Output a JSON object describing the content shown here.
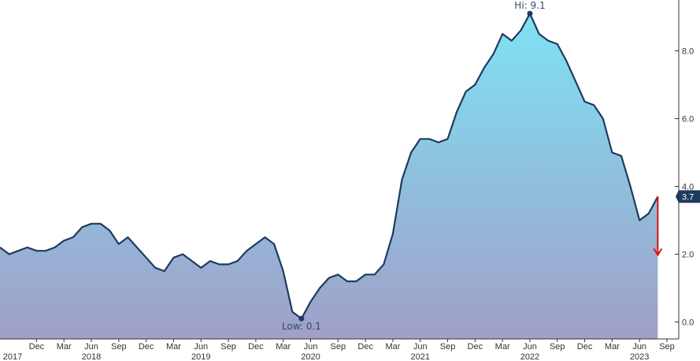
{
  "chart_data": {
    "type": "area",
    "title": "",
    "xlabel": "",
    "ylabel": "",
    "x_range": [
      "2017-08",
      "2023-09"
    ],
    "ylim": [
      -0.5,
      9.5
    ],
    "y_axis_position": "right",
    "grid": false,
    "legend": "none",
    "x_ticks": [
      {
        "date": "2017-12",
        "label": "Dec"
      },
      {
        "date": "2018-03",
        "label": "Mar"
      },
      {
        "date": "2018-06",
        "label": "Jun"
      },
      {
        "date": "2018-09",
        "label": "Sep"
      },
      {
        "date": "2018-12",
        "label": "Dec"
      },
      {
        "date": "2019-03",
        "label": "Mar"
      },
      {
        "date": "2019-06",
        "label": "Jun"
      },
      {
        "date": "2019-09",
        "label": "Sep"
      },
      {
        "date": "2019-12",
        "label": "Dec"
      },
      {
        "date": "2020-03",
        "label": "Mar"
      },
      {
        "date": "2020-06",
        "label": "Jun"
      },
      {
        "date": "2020-09",
        "label": "Sep"
      },
      {
        "date": "2020-12",
        "label": "Dec"
      },
      {
        "date": "2021-03",
        "label": "Mar"
      },
      {
        "date": "2021-06",
        "label": "Jun"
      },
      {
        "date": "2021-09",
        "label": "Sep"
      },
      {
        "date": "2021-12",
        "label": "Dec"
      },
      {
        "date": "2022-03",
        "label": "Mar"
      },
      {
        "date": "2022-06",
        "label": "Jun"
      },
      {
        "date": "2022-09",
        "label": "Sep"
      },
      {
        "date": "2022-12",
        "label": "Dec"
      },
      {
        "date": "2023-03",
        "label": "Mar"
      },
      {
        "date": "2023-06",
        "label": "Jun"
      },
      {
        "date": "2023-09",
        "label": "Sep"
      }
    ],
    "year_labels": [
      {
        "date": "2017-09",
        "label": "2017"
      },
      {
        "date": "2018-06",
        "label": "2018"
      },
      {
        "date": "2019-06",
        "label": "2019"
      },
      {
        "date": "2020-06",
        "label": "2020"
      },
      {
        "date": "2021-06",
        "label": "2021"
      },
      {
        "date": "2022-06",
        "label": "2022"
      },
      {
        "date": "2023-06",
        "label": "2023"
      }
    ],
    "y_ticks": [
      {
        "value": 0,
        "label": "0.0"
      },
      {
        "value": 2,
        "label": "2.0"
      },
      {
        "value": 4,
        "label": "4.0"
      },
      {
        "value": 6,
        "label": "6.0"
      },
      {
        "value": 8,
        "label": "8.0"
      }
    ],
    "series": [
      {
        "x": [
          "2017-08",
          "2017-09",
          "2017-10",
          "2017-11",
          "2017-12",
          "2018-01",
          "2018-02",
          "2018-03",
          "2018-04",
          "2018-05",
          "2018-06",
          "2018-07",
          "2018-08",
          "2018-09",
          "2018-10",
          "2018-11",
          "2018-12",
          "2019-01",
          "2019-02",
          "2019-03",
          "2019-04",
          "2019-05",
          "2019-06",
          "2019-07",
          "2019-08",
          "2019-09",
          "2019-10",
          "2019-11",
          "2019-12",
          "2020-01",
          "2020-02",
          "2020-03",
          "2020-04",
          "2020-05",
          "2020-06",
          "2020-07",
          "2020-08",
          "2020-09",
          "2020-10",
          "2020-11",
          "2020-12",
          "2021-01",
          "2021-02",
          "2021-03",
          "2021-04",
          "2021-05",
          "2021-06",
          "2021-07",
          "2021-08",
          "2021-09",
          "2021-10",
          "2021-11",
          "2021-12",
          "2022-01",
          "2022-02",
          "2022-03",
          "2022-04",
          "2022-05",
          "2022-06",
          "2022-07",
          "2022-08",
          "2022-09",
          "2022-10",
          "2022-11",
          "2022-12",
          "2023-01",
          "2023-02",
          "2023-03",
          "2023-04",
          "2023-05",
          "2023-06",
          "2023-07",
          "2023-08"
        ],
        "values": [
          2.2,
          2.0,
          2.1,
          2.2,
          2.1,
          2.1,
          2.2,
          2.4,
          2.5,
          2.8,
          2.9,
          2.9,
          2.7,
          2.3,
          2.5,
          2.2,
          1.9,
          1.6,
          1.5,
          1.9,
          2.0,
          1.8,
          1.6,
          1.8,
          1.7,
          1.7,
          1.8,
          2.1,
          2.3,
          2.5,
          2.3,
          1.5,
          0.3,
          0.1,
          0.6,
          1.0,
          1.3,
          1.4,
          1.2,
          1.2,
          1.4,
          1.4,
          1.7,
          2.6,
          4.2,
          5.0,
          5.4,
          5.4,
          5.3,
          5.4,
          6.2,
          6.8,
          7.0,
          7.5,
          7.9,
          8.5,
          8.3,
          8.6,
          9.1,
          8.5,
          8.3,
          8.2,
          7.7,
          7.1,
          6.5,
          6.4,
          6.0,
          5.0,
          4.9,
          4.0,
          3.0,
          3.2,
          3.7
        ]
      }
    ],
    "annotations": [
      {
        "date": "2022-06",
        "value": 9.1,
        "label": "Hi: 9.1"
      },
      {
        "date": "2020-05",
        "value": 0.1,
        "label": "Low: 0.1"
      }
    ],
    "last_value": {
      "value": 3.7,
      "label": "3.7"
    },
    "arrow": {
      "date": "2023-08",
      "from_value": 3.7,
      "to_value": 2.0
    },
    "colors": {
      "line": "#1f3a5f",
      "fill_top": "#7fe2f4",
      "fill_bottom": "#a09fc8",
      "arrow": "#e01010",
      "last_badge": "#1f3a5f",
      "axis": "#333333"
    }
  }
}
